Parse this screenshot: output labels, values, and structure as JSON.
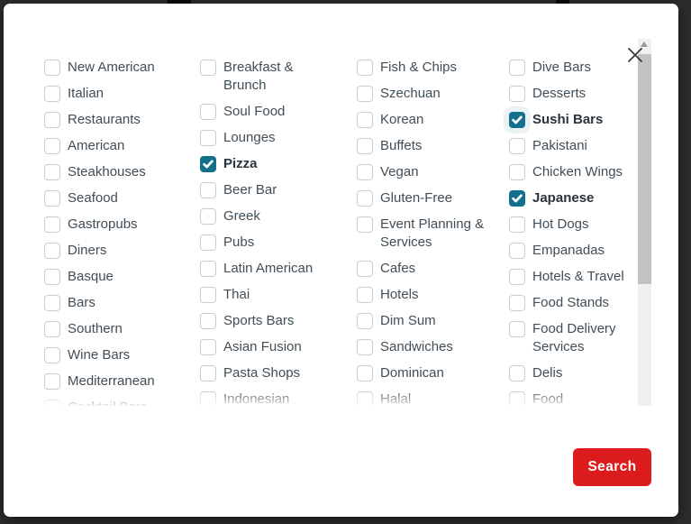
{
  "modal": {
    "close_glyph": "close",
    "search_label": "Search",
    "accent_color": "#13708c",
    "search_color": "#dc1c1c",
    "checkbox_border_color": "#c7ccce",
    "scrollbar": {
      "track_color": "#f0f0f0",
      "thumb_color": "#c2c2c2"
    },
    "columns": [
      {
        "items": [
          {
            "label": "New American"
          },
          {
            "label": "Italian"
          },
          {
            "label": "Restaurants"
          },
          {
            "label": "American"
          },
          {
            "label": "Steakhouses"
          },
          {
            "label": "Seafood"
          },
          {
            "label": "Gastropubs"
          },
          {
            "label": "Diners"
          },
          {
            "label": "Basque"
          },
          {
            "label": "Bars"
          },
          {
            "label": "Southern"
          },
          {
            "label": "Wine Bars"
          },
          {
            "label": "Mediterranean"
          },
          {
            "label": "Cocktail Bars"
          }
        ]
      },
      {
        "items": [
          {
            "label": "Breakfast & Brunch"
          },
          {
            "label": "Soul Food"
          },
          {
            "label": "Lounges"
          },
          {
            "label": "Pizza",
            "checked": true
          },
          {
            "label": "Beer Bar"
          },
          {
            "label": "Greek"
          },
          {
            "label": "Pubs"
          },
          {
            "label": "Latin American"
          },
          {
            "label": "Thai"
          },
          {
            "label": "Sports Bars"
          },
          {
            "label": "Asian Fusion"
          },
          {
            "label": "Pasta Shops"
          },
          {
            "label": "Indonesian"
          }
        ]
      },
      {
        "items": [
          {
            "label": "Fish & Chips"
          },
          {
            "label": "Szechuan"
          },
          {
            "label": "Korean"
          },
          {
            "label": "Buffets"
          },
          {
            "label": "Vegan"
          },
          {
            "label": "Gluten-Free"
          },
          {
            "label": "Event Planning & Services"
          },
          {
            "label": "Cafes"
          },
          {
            "label": "Hotels"
          },
          {
            "label": "Dim Sum"
          },
          {
            "label": "Sandwiches"
          },
          {
            "label": "Dominican"
          },
          {
            "label": "Halal"
          }
        ]
      },
      {
        "items": [
          {
            "label": "Dive Bars"
          },
          {
            "label": "Desserts"
          },
          {
            "label": "Sushi Bars",
            "checked": true,
            "halo": true
          },
          {
            "label": "Pakistani"
          },
          {
            "label": "Chicken Wings"
          },
          {
            "label": "Japanese",
            "checked": true
          },
          {
            "label": "Hot Dogs"
          },
          {
            "label": "Empanadas"
          },
          {
            "label": "Hotels & Travel"
          },
          {
            "label": "Food Stands"
          },
          {
            "label": "Food Delivery Services"
          },
          {
            "label": "Delis"
          },
          {
            "label": "Food"
          }
        ]
      }
    ]
  }
}
